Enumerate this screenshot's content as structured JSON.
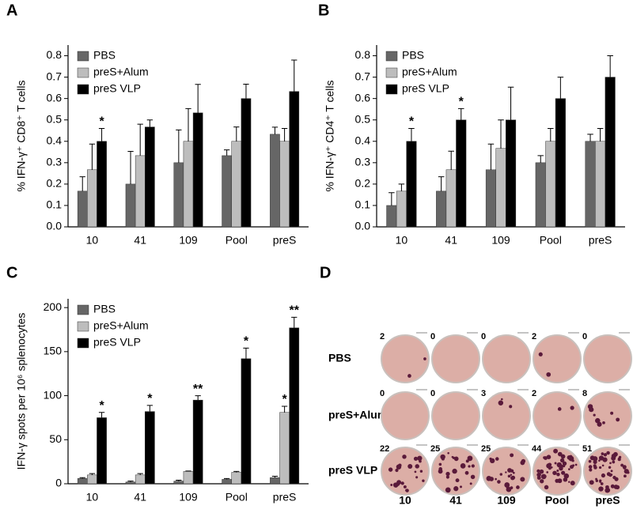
{
  "chart_data": [
    {
      "type": "bar",
      "panel_label": "A",
      "y_label": "% IFN-γ⁺ CD8⁺ T cells",
      "categories": [
        "10",
        "41",
        "109",
        "Pool",
        "preS"
      ],
      "series": [
        {
          "name": "PBS",
          "color": "#666666",
          "values": [
            0.167,
            0.2,
            0.3,
            0.333,
            0.433
          ],
          "errors": [
            0.067,
            0.153,
            0.153,
            0.027,
            0.033
          ],
          "significance": [
            null,
            null,
            null,
            null,
            null
          ]
        },
        {
          "name": "preS+Alum",
          "color": "#bdbdbd",
          "values": [
            0.267,
            0.333,
            0.4,
            0.4,
            0.4
          ],
          "errors": [
            0.12,
            0.147,
            0.153,
            0.067,
            0.06
          ],
          "significance": [
            null,
            null,
            null,
            null,
            null
          ]
        },
        {
          "name": "preS VLP",
          "color": "#000000",
          "values": [
            0.4,
            0.467,
            0.533,
            0.6,
            0.633
          ],
          "errors": [
            0.06,
            0.033,
            0.133,
            0.067,
            0.147
          ],
          "significance": [
            "*",
            null,
            null,
            null,
            null
          ]
        }
      ],
      "ylim": [
        0,
        0.85
      ],
      "yticks": [
        {
          "value": 0,
          "label": "0.0"
        },
        0.1,
        0.2,
        0.3,
        0.4,
        0.5,
        0.6,
        0.7,
        0.8
      ]
    },
    {
      "type": "bar",
      "panel_label": "B",
      "y_label": "% IFN-γ⁺ CD4⁺ T cells",
      "categories": [
        "10",
        "41",
        "109",
        "Pool",
        "preS"
      ],
      "series": [
        {
          "name": "PBS",
          "color": "#666666",
          "values": [
            0.1,
            0.167,
            0.267,
            0.3,
            0.4
          ],
          "errors": [
            0.06,
            0.067,
            0.12,
            0.033,
            0.033
          ],
          "significance": [
            null,
            null,
            null,
            null,
            null
          ]
        },
        {
          "name": "preS+Alum",
          "color": "#bdbdbd",
          "values": [
            0.167,
            0.267,
            0.367,
            0.4,
            0.4
          ],
          "errors": [
            0.033,
            0.087,
            0.133,
            0.06,
            0.06
          ],
          "significance": [
            null,
            null,
            null,
            null,
            null
          ]
        },
        {
          "name": "preS VLP",
          "color": "#000000",
          "values": [
            0.4,
            0.5,
            0.5,
            0.6,
            0.7
          ],
          "errors": [
            0.06,
            0.053,
            0.153,
            0.1,
            0.1
          ],
          "significance": [
            "*",
            "*",
            null,
            null,
            null
          ]
        }
      ],
      "ylim": [
        0,
        0.85
      ],
      "yticks": [
        {
          "value": 0,
          "label": "0.0"
        },
        0.1,
        0.2,
        0.3,
        0.4,
        0.5,
        0.6,
        0.7,
        0.8
      ]
    },
    {
      "type": "bar",
      "panel_label": "C",
      "y_label": "IFN-γ spots per 10⁶ splenocytes",
      "categories": [
        "10",
        "41",
        "109",
        "Pool",
        "preS"
      ],
      "series": [
        {
          "name": "PBS",
          "color": "#666666",
          "values": [
            6,
            2,
            3,
            5,
            7
          ],
          "errors": [
            1,
            1,
            1,
            1,
            1.5
          ],
          "significance": [
            null,
            null,
            null,
            null,
            null
          ]
        },
        {
          "name": "preS+Alum",
          "color": "#bdbdbd",
          "values": [
            10,
            10,
            14,
            13,
            81
          ],
          "errors": [
            1.5,
            1.5,
            0.5,
            1,
            7
          ],
          "significance": [
            null,
            null,
            null,
            null,
            "*"
          ]
        },
        {
          "name": "preS VLP",
          "color": "#000000",
          "values": [
            75,
            82,
            95,
            142,
            177
          ],
          "errors": [
            6,
            7,
            5,
            12,
            12
          ],
          "significance": [
            "*",
            "*",
            "**",
            "*",
            "**"
          ]
        }
      ],
      "ylim": [
        0,
        210
      ],
      "yticks": [
        0,
        50,
        100,
        150,
        200
      ]
    }
  ],
  "wells": {
    "panel_label": "D",
    "rows": [
      "PBS",
      "preS+Alum",
      "preS VLP"
    ],
    "columns": [
      "10",
      "41",
      "109",
      "Pool",
      "preS"
    ],
    "counts": [
      [
        2,
        0,
        0,
        2,
        0
      ],
      [
        0,
        0,
        3,
        2,
        8
      ],
      [
        22,
        25,
        25,
        44,
        51
      ]
    ]
  }
}
